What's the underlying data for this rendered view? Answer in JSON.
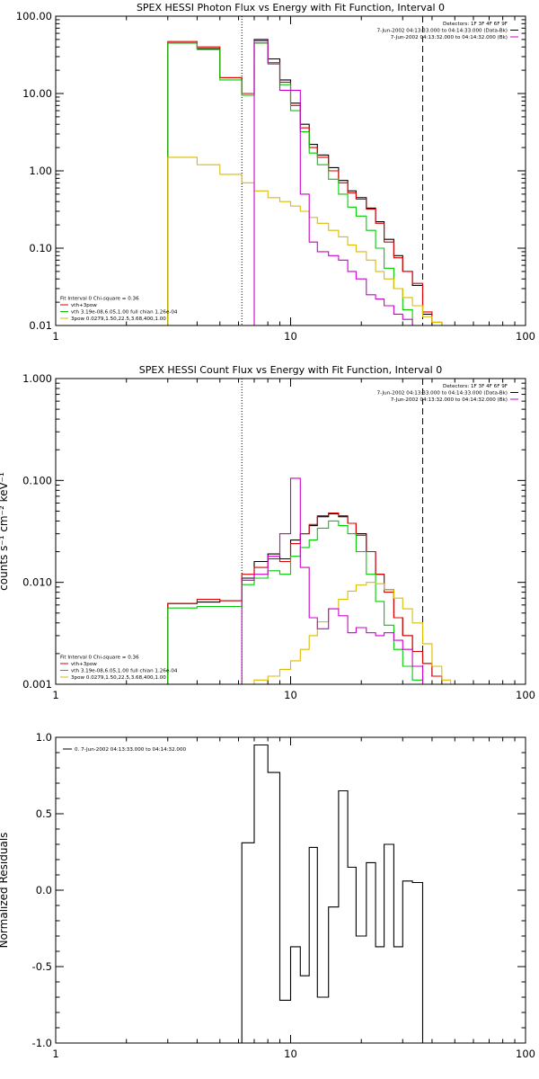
{
  "chart_data": [
    {
      "type": "line",
      "title": "SPEX HESSI Photon Flux vs Energy with Fit Function, Interval 0",
      "xscale": "log",
      "yscale": "log",
      "xlim": [
        1,
        100
      ],
      "ylim": [
        0.01,
        100
      ],
      "xticks": [
        "1",
        "10",
        "100"
      ],
      "yticks": [
        "0.01",
        "0.10",
        "1.00",
        "10.00",
        "100.00"
      ],
      "ytick_values": [
        0.01,
        0.1,
        1,
        10,
        100
      ],
      "ylabel": "",
      "vlines": [
        {
          "x": 6.2,
          "style": "dotted"
        },
        {
          "x": 36.5,
          "style": "dashed"
        }
      ],
      "legend_top_right": [
        {
          "text": "Detectors: 1F 3F 4F 6F 9F",
          "color": "#000000"
        },
        {
          "text": "7-Jun-2002 04:13:33.000 to 04:14:33.000 (Data-Bk)",
          "color": "#000000"
        },
        {
          "text": "7-Jun-2002 04:13:32.000 to 04:14:32.000 (Bk)",
          "color": "#cc00cc"
        }
      ],
      "legend_bottom_left": [
        {
          "text": "Fit Interval 0   Chi-square = 0.36",
          "color": "#000000"
        },
        {
          "text": "vth+3pow",
          "color": "#dd0000"
        },
        {
          "text": "vth 3.19e-08,6.05,1.00  full chian 1.26e-04",
          "color": "#00cc00"
        },
        {
          "text": "3pow 0.0279,1.50,22.5,3.68,400,1.00",
          "color": "#ddbb00"
        }
      ],
      "edges": [
        3.0,
        4.0,
        5.0,
        6.2,
        7.0,
        8.0,
        9.0,
        10.0,
        11.0,
        12.0,
        13.0,
        14.5,
        16.0,
        17.5,
        19.0,
        21.0,
        23.0,
        25.0,
        27.5,
        30.0,
        33.0,
        36.5,
        40.0,
        44.0
      ],
      "series": [
        {
          "color": "#000000",
          "values": [
            45,
            38,
            16,
            10,
            50,
            28,
            15,
            7.5,
            4.0,
            2.2,
            1.6,
            1.1,
            0.75,
            0.55,
            0.45,
            0.33,
            0.22,
            0.13,
            0.08,
            0.05,
            0.033,
            0.014,
            0.01,
            null
          ]
        },
        {
          "color": "#dd0000",
          "values": [
            47,
            40,
            16,
            10,
            45,
            25,
            14,
            7.0,
            3.6,
            2.0,
            1.5,
            1.0,
            0.7,
            0.52,
            0.43,
            0.32,
            0.21,
            0.12,
            0.075,
            0.05,
            0.035,
            0.015,
            0.011,
            null
          ]
        },
        {
          "color": "#00cc00",
          "values": [
            45,
            37,
            15,
            9.5,
            45,
            24,
            13,
            6.0,
            3.2,
            1.7,
            1.2,
            0.78,
            0.5,
            0.34,
            0.26,
            0.17,
            0.1,
            0.055,
            0.03,
            0.016,
            0.01,
            null,
            null,
            null
          ]
        },
        {
          "color": "#ddbb00",
          "values": [
            1.5,
            1.2,
            0.9,
            0.7,
            0.55,
            0.45,
            0.4,
            0.35,
            0.3,
            0.25,
            0.21,
            0.17,
            0.14,
            0.11,
            0.09,
            0.07,
            0.05,
            0.04,
            0.03,
            0.023,
            0.018,
            0.013,
            0.011,
            null
          ]
        },
        {
          "color": "#cc00cc",
          "values": [
            null,
            null,
            null,
            null,
            48,
            25,
            11,
            11,
            0.5,
            0.12,
            0.09,
            0.08,
            0.07,
            0.05,
            0.04,
            0.025,
            0.022,
            0.018,
            0.014,
            0.012,
            0.01,
            null,
            null,
            null
          ]
        }
      ]
    },
    {
      "type": "line",
      "title": "SPEX HESSI Count Flux vs Energy with Fit Function, Interval 0",
      "xscale": "log",
      "yscale": "log",
      "xlim": [
        1,
        100
      ],
      "ylim": [
        0.001,
        1
      ],
      "xticks": [
        "1",
        "10",
        "100"
      ],
      "yticks": [
        "0.001",
        "0.010",
        "0.100",
        "1.000"
      ],
      "ytick_values": [
        0.001,
        0.01,
        0.1,
        1
      ],
      "ylabel": "counts s⁻¹ cm⁻² keV⁻¹",
      "vlines": [
        {
          "x": 6.2,
          "style": "dotted"
        },
        {
          "x": 36.5,
          "style": "dashed"
        }
      ],
      "legend_top_right": [
        {
          "text": "Detectors: 1F 3F 4F 6F 9F",
          "color": "#000000"
        },
        {
          "text": "7-Jun-2002 04:13:33.000 to 04:14:33.000 (Data-Bk)",
          "color": "#000000"
        },
        {
          "text": "7-Jun-2002 04:13:32.000 to 04:14:32.000 (Bk)",
          "color": "#cc00cc"
        }
      ],
      "legend_bottom_left": [
        {
          "text": "Fit Interval 0   Chi-square = 0.36",
          "color": "#000000"
        },
        {
          "text": "vth+3pow",
          "color": "#dd0000"
        },
        {
          "text": "vth 3.19e-08,6.05,1.00  full chian 1.26e-04",
          "color": "#00cc00"
        },
        {
          "text": "3pow 0.0279,1.50,22.5,3.68,400,1.00",
          "color": "#ddbb00"
        }
      ],
      "edges": [
        3.0,
        4.0,
        5.0,
        6.2,
        7.0,
        8.0,
        9.0,
        10.0,
        11.0,
        12.0,
        13.0,
        14.5,
        16.0,
        17.5,
        19.0,
        21.0,
        23.0,
        25.0,
        27.5,
        30.0,
        33.0,
        36.5,
        40.0,
        44.0,
        48.0
      ],
      "series": [
        {
          "color": "#000000",
          "values": [
            0.0062,
            0.0064,
            0.0066,
            0.011,
            0.016,
            0.019,
            0.017,
            0.026,
            0.03,
            0.036,
            0.044,
            0.047,
            0.044,
            0.038,
            0.03,
            0.02,
            0.012,
            0.0085,
            0.0045,
            0.003,
            0.0021,
            0.0016,
            0.0012,
            null
          ]
        },
        {
          "color": "#dd0000",
          "values": [
            0.0062,
            0.0068,
            0.0066,
            0.012,
            0.014,
            0.017,
            0.016,
            0.024,
            0.03,
            0.037,
            0.045,
            0.048,
            0.045,
            0.038,
            0.029,
            0.02,
            0.012,
            0.008,
            0.0045,
            0.003,
            0.0021,
            0.0016,
            0.0012,
            null
          ]
        },
        {
          "color": "#00cc00",
          "values": [
            0.0056,
            0.0058,
            0.0058,
            0.0095,
            0.011,
            0.013,
            0.012,
            0.018,
            0.022,
            0.026,
            0.034,
            0.04,
            0.036,
            0.03,
            0.02,
            0.012,
            0.0065,
            0.0038,
            0.0022,
            0.0015,
            0.0011,
            null,
            null,
            null
          ]
        },
        {
          "color": "#ddbb00",
          "values": [
            null,
            null,
            null,
            0.001,
            0.0011,
            0.0012,
            0.0014,
            0.0017,
            0.0022,
            0.003,
            0.0041,
            0.0055,
            0.0068,
            0.0082,
            0.0094,
            0.01,
            0.0097,
            0.0085,
            0.007,
            0.0055,
            0.004,
            0.0025,
            0.0015,
            0.0011
          ]
        },
        {
          "color": "#cc00cc",
          "values": [
            null,
            null,
            null,
            0.0105,
            0.012,
            0.018,
            0.03,
            0.105,
            0.014,
            0.0045,
            0.0035,
            0.0055,
            0.0047,
            0.0032,
            0.0036,
            0.0032,
            0.003,
            0.0032,
            0.0027,
            0.0022,
            0.0015,
            null,
            null,
            null
          ]
        }
      ]
    },
    {
      "type": "line",
      "title": "",
      "xscale": "log",
      "yscale": "linear",
      "xlim": [
        1,
        100
      ],
      "ylim": [
        -1.0,
        1.0
      ],
      "xticks": [
        "1",
        "10",
        "100"
      ],
      "yticks": [
        "-1.0",
        "-0.5",
        "0.0",
        "0.5",
        "1.0"
      ],
      "ytick_values": [
        -1.0,
        -0.5,
        0.0,
        0.5,
        1.0
      ],
      "ylabel": "Normalized Residuals",
      "legend_top_left": [
        {
          "text": "0.  7-Jun-2002 04:13:33.000 to 04:14:32.000",
          "color": "#000000"
        }
      ],
      "edges": [
        6.2,
        7.0,
        8.0,
        9.0,
        10.0,
        11.0,
        12.0,
        13.0,
        14.5,
        16.0,
        17.5,
        19.0,
        21.0,
        23.0,
        25.0,
        27.5,
        30.0,
        33.0,
        36.5
      ],
      "series": [
        {
          "color": "#000000",
          "values": [
            0.31,
            0.95,
            0.77,
            -0.72,
            -0.37,
            -0.56,
            0.28,
            -0.7,
            -0.11,
            0.65,
            0.15,
            -0.3,
            0.18,
            -0.37,
            0.3,
            -0.37,
            0.06,
            0.05
          ]
        }
      ]
    }
  ]
}
